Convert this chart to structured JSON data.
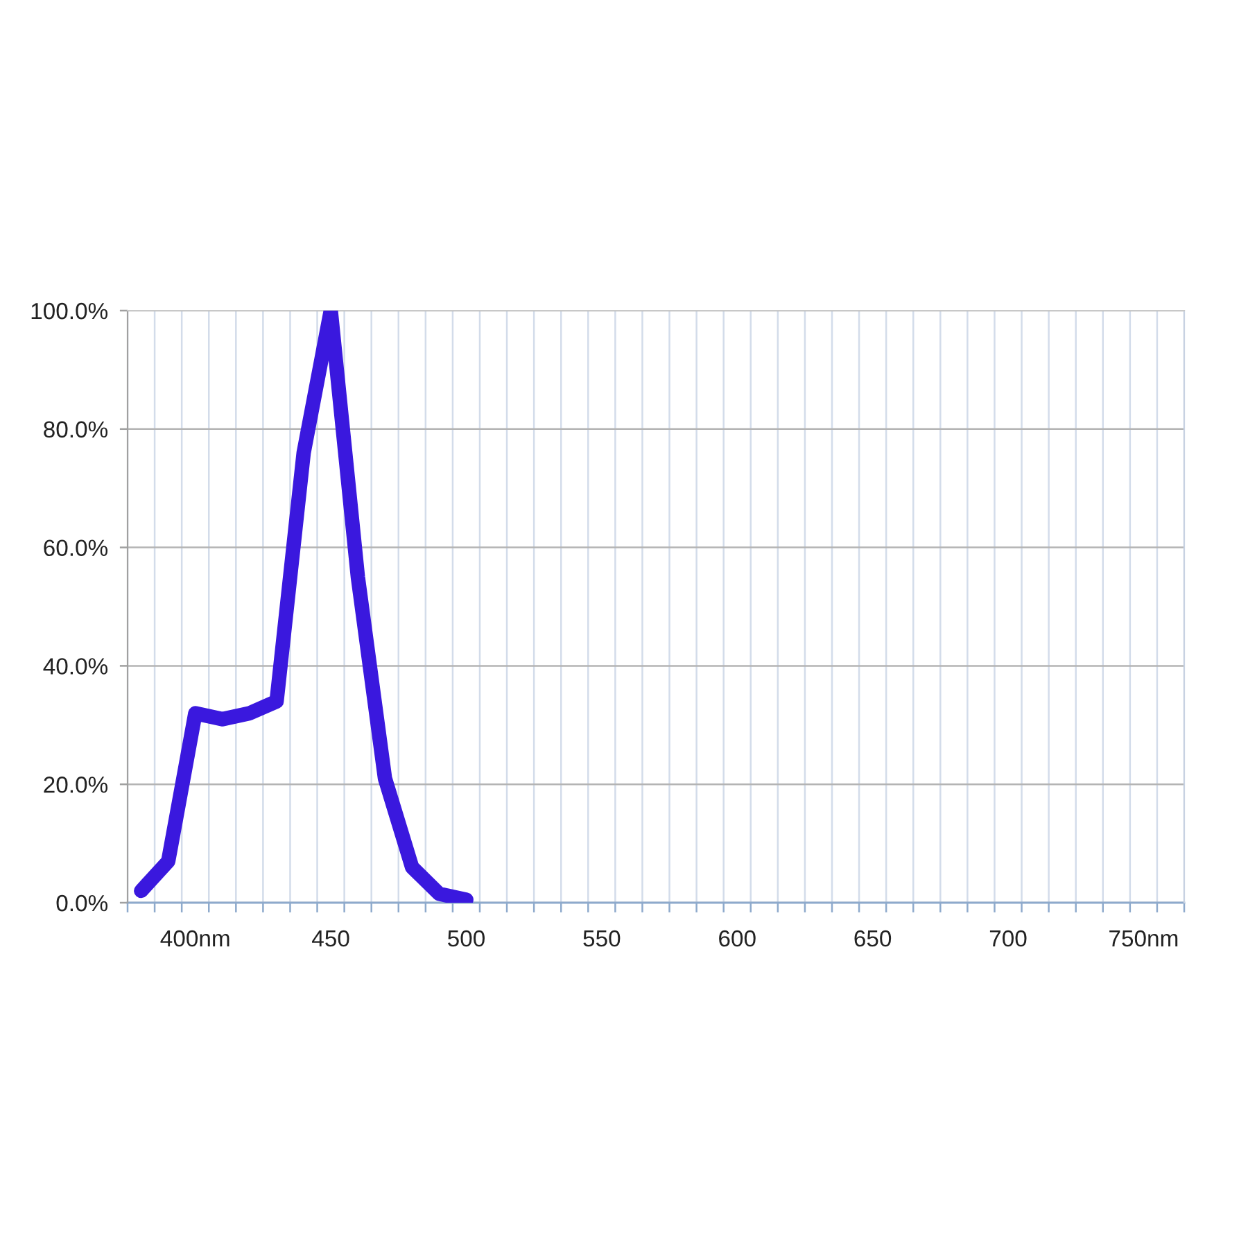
{
  "chart_data": {
    "type": "line",
    "categories": [
      null,
      null,
      "400nm",
      null,
      null,
      null,
      null,
      "450",
      null,
      null,
      null,
      null,
      "500",
      null,
      null,
      null,
      null,
      "550",
      null,
      null,
      null,
      null,
      "600",
      null,
      null,
      null,
      null,
      "650",
      null,
      null,
      null,
      null,
      "700",
      null,
      null,
      null,
      null,
      "750nm",
      null
    ],
    "values": [
      2,
      7,
      32,
      31,
      32,
      34,
      76,
      100,
      55,
      21,
      6,
      1.5,
      0.5,
      null,
      null,
      null,
      null,
      null,
      null,
      null,
      null,
      null,
      null,
      null,
      null,
      null,
      null,
      null,
      null,
      null,
      null,
      null,
      null,
      null,
      null,
      null,
      null,
      null,
      null
    ],
    "color": "#3a18de",
    "ylim": [
      0,
      100
    ],
    "yticks": [
      {
        "value": 0,
        "label": "0.0%"
      },
      {
        "value": 20,
        "label": "20.0%"
      },
      {
        "value": 40,
        "label": "40.0%"
      },
      {
        "value": 60,
        "label": "60.0%"
      },
      {
        "value": 80,
        "label": "80.0%"
      },
      {
        "value": 100,
        "label": "100.0%"
      }
    ],
    "grid": true
  }
}
